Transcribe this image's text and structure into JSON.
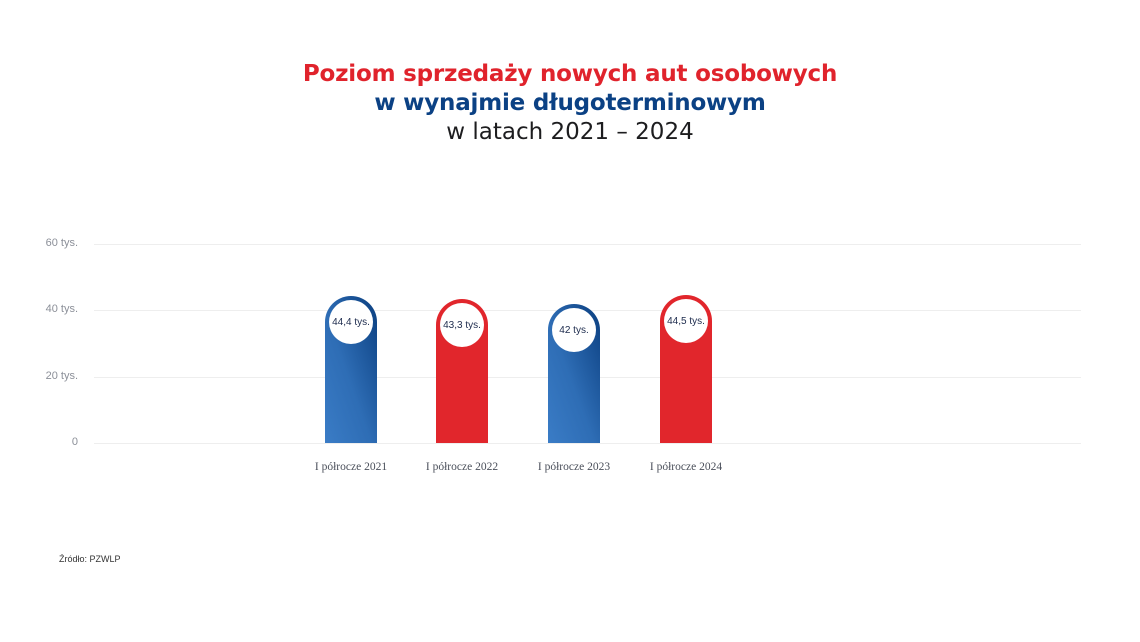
{
  "title": {
    "line1": "Poziom sprzedaży nowych aut osobowych",
    "line2": "w wynajmie długoterminowym",
    "line3": "w latach 2021 – 2024"
  },
  "source": "Źródło: PZWLP",
  "colors": {
    "red": "#e1262c",
    "blue_dark": "#0b3f80",
    "blue_light": "#3a7cc6",
    "title_blue": "#0b4184",
    "title_red": "#e0232c"
  },
  "chart_data": {
    "type": "bar",
    "title": "Poziom sprzedaży nowych aut osobowych w wynajmie długoterminowym w latach 2021 – 2024",
    "categories": [
      "I półrocze 2021",
      "I półrocze 2022",
      "I półrocze 2023",
      "I półrocze 2024"
    ],
    "values": [
      44.4,
      43.3,
      42,
      44.5
    ],
    "value_labels": [
      "44,4 tys.",
      "43,3 tys.",
      "42 tys.",
      "44,5 tys."
    ],
    "bar_colors": [
      "blue",
      "red",
      "blue",
      "red"
    ],
    "xlabel": "",
    "ylabel": "",
    "unit": "tys.",
    "ylim": [
      0,
      60
    ],
    "yticks": [
      0,
      20,
      40,
      60
    ],
    "ytick_labels": [
      "0",
      "20 tys.",
      "40 tys.",
      "60 tys."
    ],
    "grid": true,
    "legend": "none"
  }
}
